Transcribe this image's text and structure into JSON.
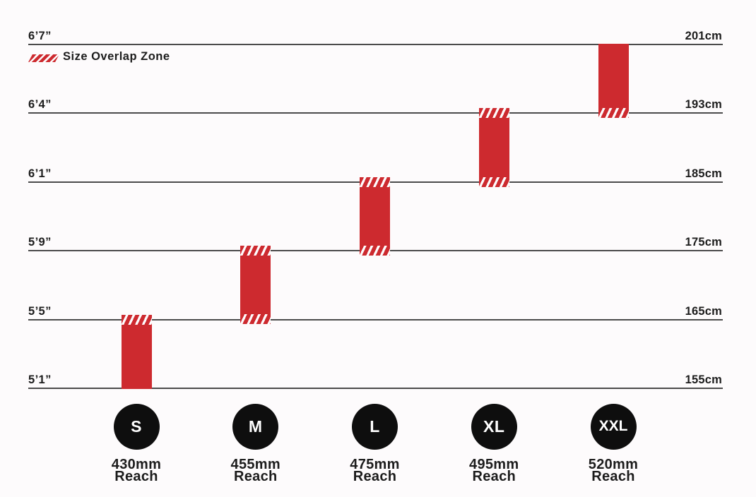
{
  "background": "#fdfbfc",
  "colors": {
    "bar_red": "#cd2a2f",
    "hatch_white": "#fdfbfc",
    "grid_line": "#4b4b4b",
    "label_text": "#1c1c1c",
    "badge_fill": "#0e0e0e",
    "badge_text": "#ffffff"
  },
  "legend": {
    "swatch_icon": "diagonal-stripes-icon",
    "label": "Size Overlap Zone"
  },
  "chart_data": {
    "type": "bar",
    "orientation": "vertical",
    "grid": "horizontal-lines-only",
    "legend_position": "top-left",
    "height_levels": [
      {
        "imperial": "6’7”",
        "metric": "201cm"
      },
      {
        "imperial": "6’4”",
        "metric": "193cm"
      },
      {
        "imperial": "6’1”",
        "metric": "185cm"
      },
      {
        "imperial": "5’9”",
        "metric": "175cm"
      },
      {
        "imperial": "5’5”",
        "metric": "165cm"
      },
      {
        "imperial": "5’1”",
        "metric": "155cm"
      }
    ],
    "series": [
      {
        "size": "S",
        "reach": "430mm",
        "reach_word": "Reach",
        "height_min_metric": "155cm",
        "height_max_metric": "165cm",
        "height_min_imperial": "5’1”",
        "height_max_imperial": "5’5”",
        "overlap_top": true,
        "overlap_bottom": false
      },
      {
        "size": "M",
        "reach": "455mm",
        "reach_word": "Reach",
        "height_min_metric": "165cm",
        "height_max_metric": "175cm",
        "height_min_imperial": "5’5”",
        "height_max_imperial": "5’9”",
        "overlap_top": true,
        "overlap_bottom": true
      },
      {
        "size": "L",
        "reach": "475mm",
        "reach_word": "Reach",
        "height_min_metric": "175cm",
        "height_max_metric": "185cm",
        "height_min_imperial": "5’9”",
        "height_max_imperial": "6’1”",
        "overlap_top": true,
        "overlap_bottom": true
      },
      {
        "size": "XL",
        "reach": "495mm",
        "reach_word": "Reach",
        "height_min_metric": "185cm",
        "height_max_metric": "193cm",
        "height_min_imperial": "6’1”",
        "height_max_imperial": "6’4”",
        "overlap_top": true,
        "overlap_bottom": true
      },
      {
        "size": "XXL",
        "reach": "520mm",
        "reach_word": "Reach",
        "height_min_metric": "193cm",
        "height_max_metric": "201cm",
        "height_min_imperial": "6’4”",
        "height_max_imperial": "6’7”",
        "overlap_top": false,
        "overlap_bottom": true
      }
    ]
  }
}
